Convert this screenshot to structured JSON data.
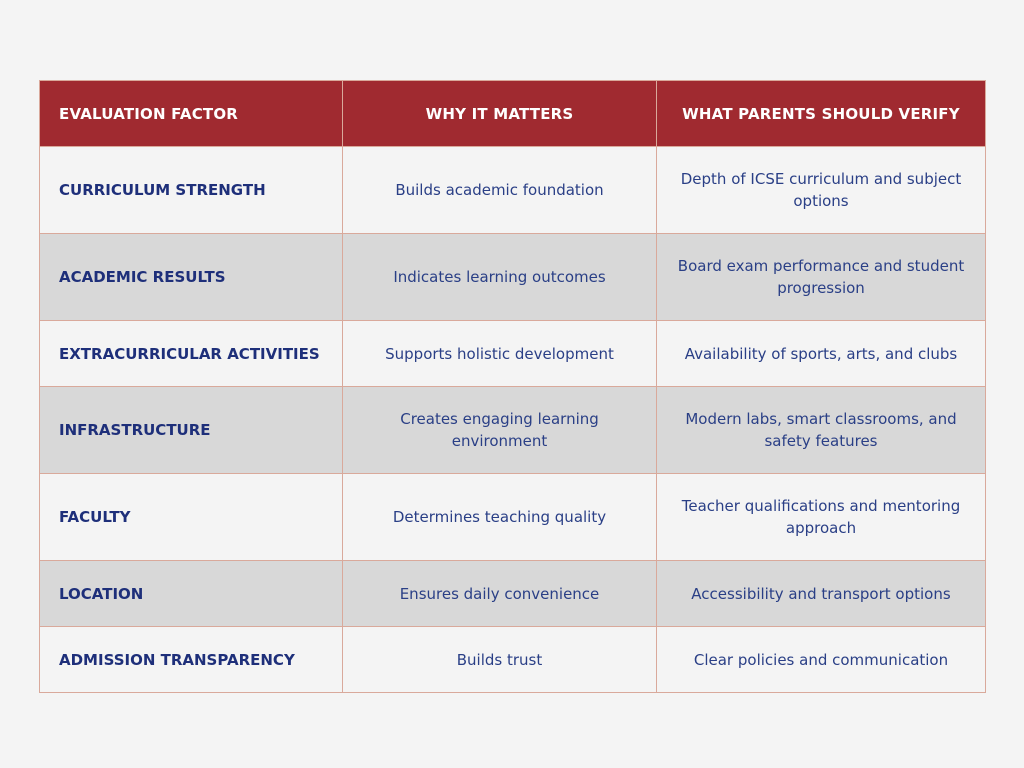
{
  "table": {
    "headers": [
      "EVALUATION FACTOR",
      "WHY IT MATTERS",
      "WHAT PARENTS SHOULD VERIFY"
    ],
    "rows": [
      {
        "factor": "CURRICULUM STRENGTH",
        "why": "Builds academic foundation",
        "verify": "Depth of ICSE curriculum and subject options"
      },
      {
        "factor": "ACADEMIC RESULTS",
        "why": "Indicates learning outcomes",
        "verify": "Board exam performance and student progression"
      },
      {
        "factor": "EXTRACURRICULAR ACTIVITIES",
        "why": "Supports holistic development",
        "verify": "Availability of sports, arts, and clubs"
      },
      {
        "factor": "INFRASTRUCTURE",
        "why": "Creates engaging learning environment",
        "verify": "Modern labs, smart classrooms, and safety features"
      },
      {
        "factor": "FACULTY",
        "why": "Determines teaching quality",
        "verify": "Teacher qualifications and mentoring approach"
      },
      {
        "factor": "LOCATION",
        "why": "Ensures daily convenience",
        "verify": "Accessibility and transport options"
      },
      {
        "factor": "ADMISSION TRANSPARENCY",
        "why": "Builds trust",
        "verify": "Clear policies and communication"
      }
    ]
  },
  "colors": {
    "header_bg": "#a02a30",
    "header_text": "#ffffff",
    "factor_text": "#1e2f7a",
    "body_text": "#2a3f86",
    "row_light": "#f4f4f4",
    "row_dark": "#d8d8d8",
    "border": "#d9a99b"
  }
}
